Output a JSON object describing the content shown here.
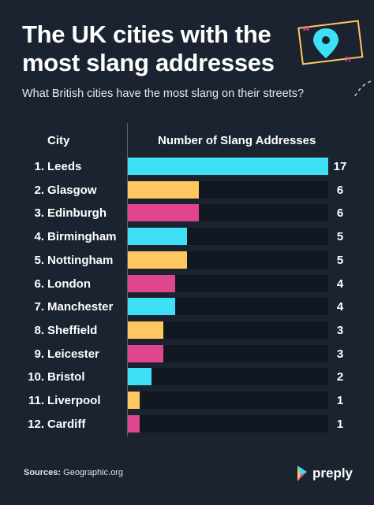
{
  "title": "The UK cities with the most slang addresses",
  "subtitle": "What British cities have the most slang on their streets?",
  "source_label": "Sources:",
  "source_value": "Geographic.org",
  "brand": "preply",
  "colors": {
    "background": "#1b2230",
    "cyan": "#3ee0f5",
    "yellow": "#ffc75f",
    "pink": "#e0468e",
    "track": "#121822"
  },
  "chart_data": {
    "type": "bar",
    "orientation": "horizontal",
    "column_headers": [
      "City",
      "Number of Slang Addresses"
    ],
    "ranks": [
      "1.",
      "2.",
      "3.",
      "4.",
      "5.",
      "6.",
      "7.",
      "8.",
      "9.",
      "10.",
      "11.",
      "12."
    ],
    "categories": [
      "Leeds",
      "Glasgow",
      "Edinburgh",
      "Birmingham",
      "Nottingham",
      "London",
      "Manchester",
      "Sheffield",
      "Leicester",
      "Bristol",
      "Liverpool",
      "Cardiff"
    ],
    "values": [
      17,
      6,
      6,
      5,
      5,
      4,
      4,
      3,
      3,
      2,
      1,
      1
    ],
    "bar_colors": [
      "cyan",
      "yellow",
      "pink",
      "cyan",
      "yellow",
      "pink",
      "cyan",
      "yellow",
      "pink",
      "cyan",
      "yellow",
      "pink"
    ],
    "xlim": [
      0,
      17
    ],
    "grid": false,
    "legend": "none"
  }
}
